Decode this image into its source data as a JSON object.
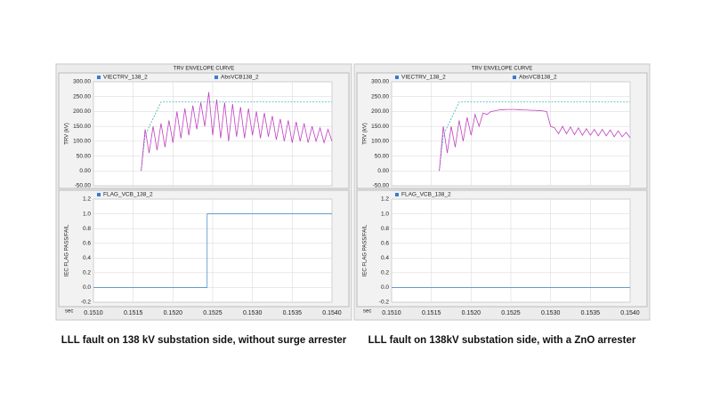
{
  "panels": [
    {
      "title": "TRV ENVELOPE CURVE",
      "caption": "LLL fault on 138 kV substation side, without surge arrester"
    },
    {
      "title": "TRV ENVELOPE CURVE",
      "caption": "LLL fault on 138kV substation side, with a ZnO arrester"
    }
  ],
  "chart_data": [
    {
      "type": "line",
      "ylabel": "TRV (kV)",
      "xlabel": "sec",
      "x": [
        0.1516,
        0.15165,
        0.1517,
        0.15175,
        0.1518,
        0.15185,
        0.1519,
        0.15195,
        0.152,
        0.15205,
        0.1521,
        0.15215,
        0.1522,
        0.15225,
        0.1523,
        0.15235,
        0.1524,
        0.15245,
        0.1525,
        0.15255,
        0.1526,
        0.15265,
        0.1527,
        0.15275,
        0.1528,
        0.15285,
        0.1529,
        0.15295,
        0.153,
        0.15305,
        0.1531,
        0.15315,
        0.1532,
        0.15325,
        0.1533,
        0.15335,
        0.1534,
        0.15345,
        0.1535,
        0.15355,
        0.1536,
        0.15365,
        0.1537,
        0.15375,
        0.1538,
        0.15385,
        0.1539,
        0.15395,
        0.154
      ],
      "series": [
        {
          "name": "VIECTRV_138_2",
          "color": "#3cb4b4",
          "style": "dashed",
          "values": [
            0,
            120,
            148,
            176,
            204,
            232,
            232,
            232,
            232,
            232,
            232,
            232,
            232,
            232,
            232,
            232,
            232,
            232,
            232,
            232,
            232,
            232,
            232,
            232,
            232,
            232,
            232,
            232,
            232,
            232,
            232,
            232,
            232,
            232,
            232,
            232,
            232,
            232,
            232,
            232,
            232,
            232,
            232,
            232,
            232,
            232,
            232,
            232,
            232
          ]
        },
        {
          "name": "AbsVCB138_2",
          "color": "#c040c0",
          "style": "solid",
          "values": [
            0,
            140,
            60,
            150,
            70,
            160,
            80,
            170,
            95,
            200,
            110,
            210,
            120,
            220,
            140,
            230,
            150,
            265,
            120,
            240,
            110,
            230,
            100,
            225,
            115,
            215,
            110,
            210,
            120,
            200,
            110,
            195,
            115,
            185,
            105,
            175,
            100,
            170,
            95,
            165,
            100,
            160,
            95,
            150,
            100,
            145,
            95,
            140,
            100
          ]
        }
      ],
      "xlim": [
        0.151,
        0.154
      ],
      "xticks": [
        {
          "value": 0.151,
          "label": "0.1510"
        },
        0.1515,
        {
          "value": 0.152,
          "label": "0.1520"
        },
        0.1525,
        {
          "value": 0.153,
          "label": "0.1530"
        },
        0.1535,
        {
          "value": 0.154,
          "label": "0.1540"
        }
      ],
      "ylim": [
        -50,
        300
      ],
      "yticks": [
        {
          "value": -50,
          "label": "-50.00"
        },
        {
          "value": 0,
          "label": "0.00"
        },
        {
          "value": 50,
          "label": "50.00"
        },
        {
          "value": 100,
          "label": "100.00"
        },
        {
          "value": 150,
          "label": "150.00"
        },
        {
          "value": 200,
          "label": "200.00"
        },
        {
          "value": 250,
          "label": "250.00"
        },
        {
          "value": 300,
          "label": "300.00"
        }
      ],
      "grid": true
    },
    {
      "type": "line",
      "ylabel": "IEC FLAG PASS/FAIL",
      "xlabel": "sec",
      "x": [
        0.151,
        0.15243,
        0.15243,
        0.154
      ],
      "series": [
        {
          "name": "FLAG_VCB_138_2",
          "color": "#4f8fd0",
          "style": "solid",
          "values": [
            0,
            0,
            1,
            1
          ]
        }
      ],
      "xlim": [
        0.151,
        0.154
      ],
      "xticks": [
        {
          "value": 0.151,
          "label": "0.1510"
        },
        0.1515,
        {
          "value": 0.152,
          "label": "0.1520"
        },
        0.1525,
        {
          "value": 0.153,
          "label": "0.1530"
        },
        0.1535,
        {
          "value": 0.154,
          "label": "0.1540"
        }
      ],
      "ylim": [
        -0.2,
        1.2
      ],
      "yticks": [
        -0.2,
        {
          "value": 0,
          "label": "0.0"
        },
        0.2,
        0.4,
        0.6,
        0.8,
        {
          "value": 1,
          "label": "1.0"
        },
        1.2
      ],
      "grid": true
    },
    {
      "type": "line",
      "ylabel": "TRV (kV)",
      "xlabel": "sec",
      "x": [
        0.1516,
        0.15165,
        0.1517,
        0.15175,
        0.1518,
        0.15185,
        0.1519,
        0.15195,
        0.152,
        0.15205,
        0.1521,
        0.15215,
        0.1522,
        0.15225,
        0.1523,
        0.15235,
        0.1524,
        0.15245,
        0.1525,
        0.15255,
        0.1526,
        0.15265,
        0.1527,
        0.15275,
        0.1528,
        0.15285,
        0.1529,
        0.15295,
        0.153,
        0.15305,
        0.1531,
        0.15315,
        0.1532,
        0.15325,
        0.1533,
        0.15335,
        0.1534,
        0.15345,
        0.1535,
        0.15355,
        0.1536,
        0.15365,
        0.1537,
        0.15375,
        0.1538,
        0.15385,
        0.1539,
        0.15395,
        0.154
      ],
      "series": [
        {
          "name": "VIECTRV_138_2",
          "color": "#3cb4b4",
          "style": "dashed",
          "values": [
            0,
            120,
            148,
            176,
            204,
            232,
            232,
            232,
            232,
            232,
            232,
            232,
            232,
            232,
            232,
            232,
            232,
            232,
            232,
            232,
            232,
            232,
            232,
            232,
            232,
            232,
            232,
            232,
            232,
            232,
            232,
            232,
            232,
            232,
            232,
            232,
            232,
            232,
            232,
            232,
            232,
            232,
            232,
            232,
            232,
            232,
            232,
            232,
            232
          ]
        },
        {
          "name": "AbsVCB138_2",
          "color": "#c040c0",
          "style": "solid",
          "values": [
            0,
            150,
            60,
            150,
            80,
            170,
            100,
            180,
            120,
            190,
            150,
            195,
            190,
            200,
            202,
            205,
            206,
            207,
            207,
            207,
            206,
            205,
            205,
            204,
            204,
            203,
            202,
            200,
            150,
            145,
            125,
            150,
            125,
            148,
            122,
            145,
            120,
            142,
            120,
            140,
            118,
            140,
            118,
            138,
            115,
            135,
            115,
            130,
            112
          ]
        }
      ],
      "xlim": [
        0.151,
        0.154
      ],
      "xticks": [
        {
          "value": 0.151,
          "label": "0.1510"
        },
        0.1515,
        {
          "value": 0.152,
          "label": "0.1520"
        },
        0.1525,
        {
          "value": 0.153,
          "label": "0.1530"
        },
        0.1535,
        {
          "value": 0.154,
          "label": "0.1540"
        }
      ],
      "ylim": [
        -50,
        300
      ],
      "yticks": [
        {
          "value": -50,
          "label": "-50.00"
        },
        {
          "value": 0,
          "label": "0.00"
        },
        {
          "value": 50,
          "label": "50.00"
        },
        {
          "value": 100,
          "label": "100.00"
        },
        {
          "value": 150,
          "label": "150.00"
        },
        {
          "value": 200,
          "label": "200.00"
        },
        {
          "value": 250,
          "label": "250.00"
        },
        {
          "value": 300,
          "label": "300.00"
        }
      ],
      "grid": true
    },
    {
      "type": "line",
      "ylabel": "IEC FLAG PASS/FAIL",
      "xlabel": "sec",
      "x": [
        0.151,
        0.154
      ],
      "series": [
        {
          "name": "FLAG_VCB_138_2",
          "color": "#4f8fd0",
          "style": "solid",
          "values": [
            0,
            0
          ]
        }
      ],
      "xlim": [
        0.151,
        0.154
      ],
      "xticks": [
        {
          "value": 0.151,
          "label": "0.1510"
        },
        0.1515,
        {
          "value": 0.152,
          "label": "0.1520"
        },
        0.1525,
        {
          "value": 0.153,
          "label": "0.1530"
        },
        0.1535,
        {
          "value": 0.154,
          "label": "0.1540"
        }
      ],
      "ylim": [
        -0.2,
        1.2
      ],
      "yticks": [
        -0.2,
        {
          "value": 0,
          "label": "0.0"
        },
        0.2,
        0.4,
        0.6,
        0.8,
        {
          "value": 1,
          "label": "1.0"
        },
        1.2
      ],
      "grid": true
    }
  ]
}
